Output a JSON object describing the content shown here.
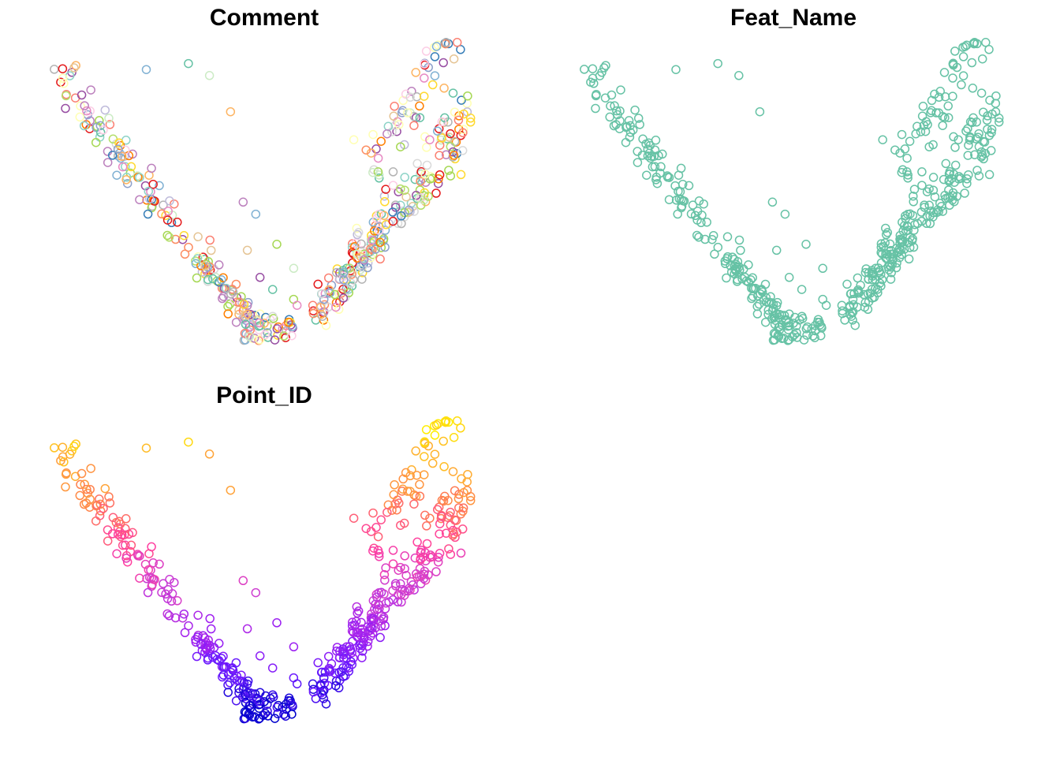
{
  "chart_data": [
    {
      "type": "scatter",
      "title": "Comment",
      "marker": "open-circle",
      "axes_visible": false,
      "grid": false,
      "legend": "none",
      "xlim": [
        0,
        1
      ],
      "ylim": [
        0,
        1
      ],
      "palette": [
        "#66c2a5",
        "#fc8d62",
        "#8da0cb",
        "#e78ac3",
        "#a6d854",
        "#ffd92f",
        "#e5c494",
        "#b3b3b3",
        "#8dd3c7",
        "#ffffb3",
        "#bebada",
        "#fb8072",
        "#80b1d3",
        "#fdb462",
        "#b3de69",
        "#fccde5",
        "#d9d9d9",
        "#bc80bd",
        "#ccebc5",
        "#e41a1c",
        "#377eb8",
        "#984ea3",
        "#ff7f00"
      ],
      "points_per_arm_left": 170,
      "points_per_arm_right": 230,
      "shape": "V-shaped band: left arm from upper-left down to bottom-center, right arm from bottom-center up to upper-right; colours assigned per point from palette"
    },
    {
      "type": "scatter",
      "title": "Feat_Name",
      "marker": "open-circle",
      "axes_visible": false,
      "grid": false,
      "legend": "none",
      "xlim": [
        0,
        1
      ],
      "ylim": [
        0,
        1
      ],
      "color": "#66c2a5",
      "shape": "same V-shaped layout, all points a single colour"
    },
    {
      "type": "scatter",
      "title": "Point_ID",
      "marker": "open-circle",
      "axes_visible": false,
      "grid": false,
      "legend": "none",
      "xlim": [
        0,
        1
      ],
      "ylim": [
        0,
        1
      ],
      "gradient": [
        "#0000cc",
        "#6a1aff",
        "#a020f0",
        "#d040d0",
        "#ff40a0",
        "#ff7f50",
        "#ffb030",
        "#ffee00"
      ],
      "shape": "same V-shaped layout, colour by height: dark blue at the bottom grading through purple and magenta to orange/yellow at the top"
    }
  ]
}
